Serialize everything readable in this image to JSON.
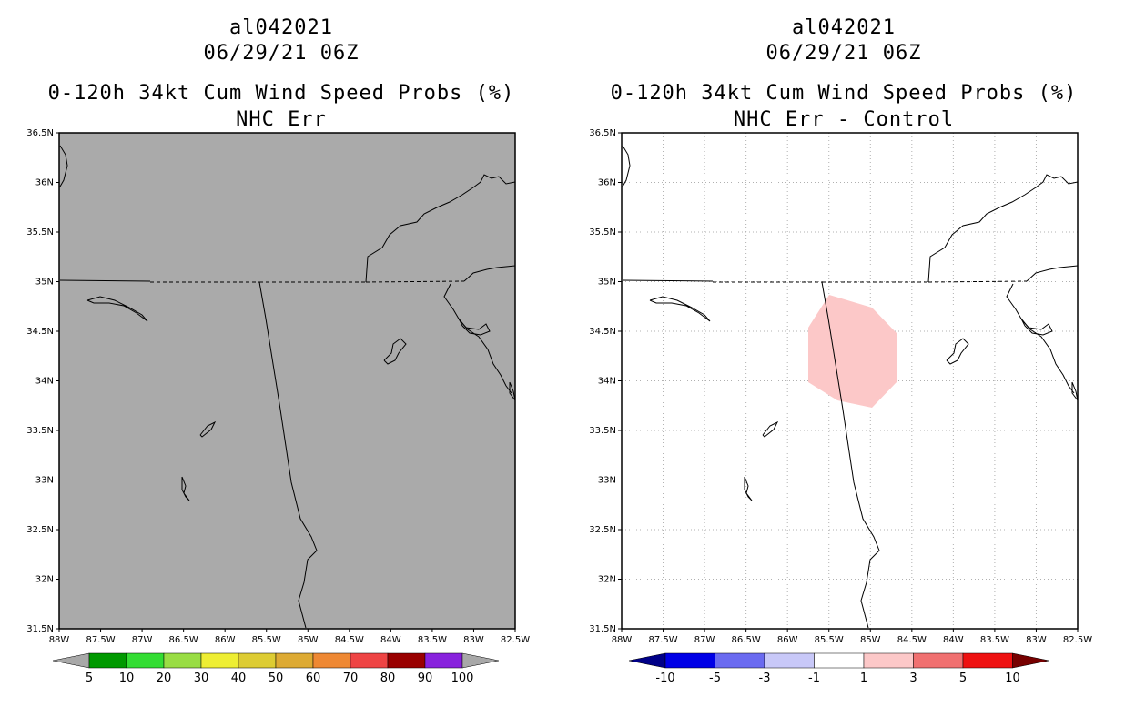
{
  "colors": {
    "land_fill_left": "#aaaaaa",
    "grid": "#b0b0b0",
    "diff_positive": "#fcc8c8"
  },
  "panels": [
    {
      "id": "left",
      "storm_id": "al042021",
      "datetime": "06/29/21 06Z",
      "product": "0-120h 34kt Cum Wind Speed Probs (%)",
      "subtitle": "NHC Err",
      "show_grid": false,
      "lat_ticks": [
        "36.5N",
        "36N",
        "35.5N",
        "35N",
        "34.5N",
        "34N",
        "33.5N",
        "33N",
        "32.5N",
        "32N",
        "31.5N"
      ],
      "lon_ticks": [
        "88W",
        "87.5W",
        "87W",
        "86.5W",
        "86W",
        "85.5W",
        "85W",
        "84.5W",
        "84W",
        "83.5W",
        "83W",
        "82.5W"
      ],
      "colorbar": {
        "labels": [
          "5",
          "10",
          "20",
          "30",
          "40",
          "50",
          "60",
          "70",
          "80",
          "90",
          "100"
        ],
        "colors": [
          "#009900",
          "#33dd33",
          "#99dd44",
          "#eeee33",
          "#ddcc33",
          "#ddaa33",
          "#ee8833",
          "#ee4444",
          "#990000",
          "#8822dd"
        ],
        "end_low": "#a8a8a8",
        "end_high": "#a8a8a8"
      }
    },
    {
      "id": "right",
      "storm_id": "al042021",
      "datetime": "06/29/21 06Z",
      "product": "0-120h 34kt Cum Wind Speed Probs (%)",
      "subtitle": "NHC Err - Control",
      "show_grid": true,
      "lat_ticks": [
        "36.5N",
        "36N",
        "35.5N",
        "35N",
        "34.5N",
        "34N",
        "33.5N",
        "33N",
        "32.5N",
        "32N",
        "31.5N"
      ],
      "lon_ticks": [
        "88W",
        "87.5W",
        "87W",
        "86.5W",
        "86W",
        "85.5W",
        "85W",
        "84.5W",
        "84W",
        "83.5W",
        "83W",
        "82.5W"
      ],
      "colorbar": {
        "labels": [
          "-10",
          "-5",
          "-3",
          "-1",
          "1",
          "3",
          "5",
          "10"
        ],
        "colors": [
          "#0000e6",
          "#6a6af0",
          "#c8c8f8",
          "#ffffff",
          "#fcc8c8",
          "#f07070",
          "#ee1111"
        ],
        "end_low": "#000088",
        "end_high": "#770000"
      }
    }
  ]
}
